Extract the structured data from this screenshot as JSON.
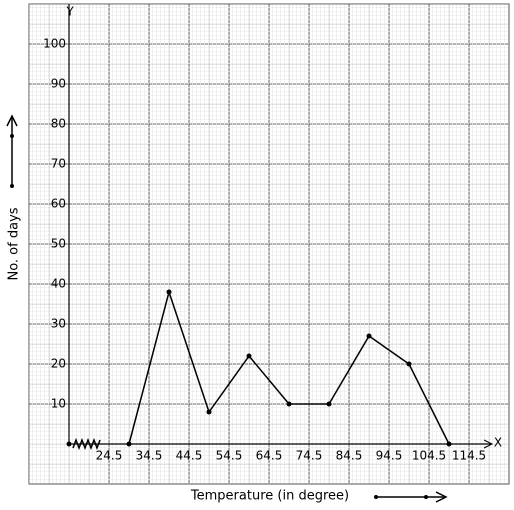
{
  "chart_data": {
    "type": "line",
    "x_axis_name": "X",
    "y_axis_name": "Y",
    "x_label": "Temperature (in degree)",
    "y_label": "No. of days",
    "x": [
      29.5,
      39.5,
      49.5,
      59.5,
      69.5,
      79.5,
      89.5,
      99.5,
      109.5
    ],
    "series": [
      {
        "color": "#000000",
        "values": [
          0,
          38,
          8,
          22,
          10,
          10,
          27,
          20,
          0
        ]
      }
    ],
    "xlim": [
      14.5,
      119.5
    ],
    "xticks": [
      24.5,
      34.5,
      44.5,
      54.5,
      64.5,
      74.5,
      84.5,
      94.5,
      104.5,
      114.5
    ],
    "ylim": [
      0,
      110
    ],
    "yticks": [
      10,
      20,
      30,
      40,
      50,
      60,
      70,
      80,
      90,
      100
    ],
    "grid": true
  }
}
